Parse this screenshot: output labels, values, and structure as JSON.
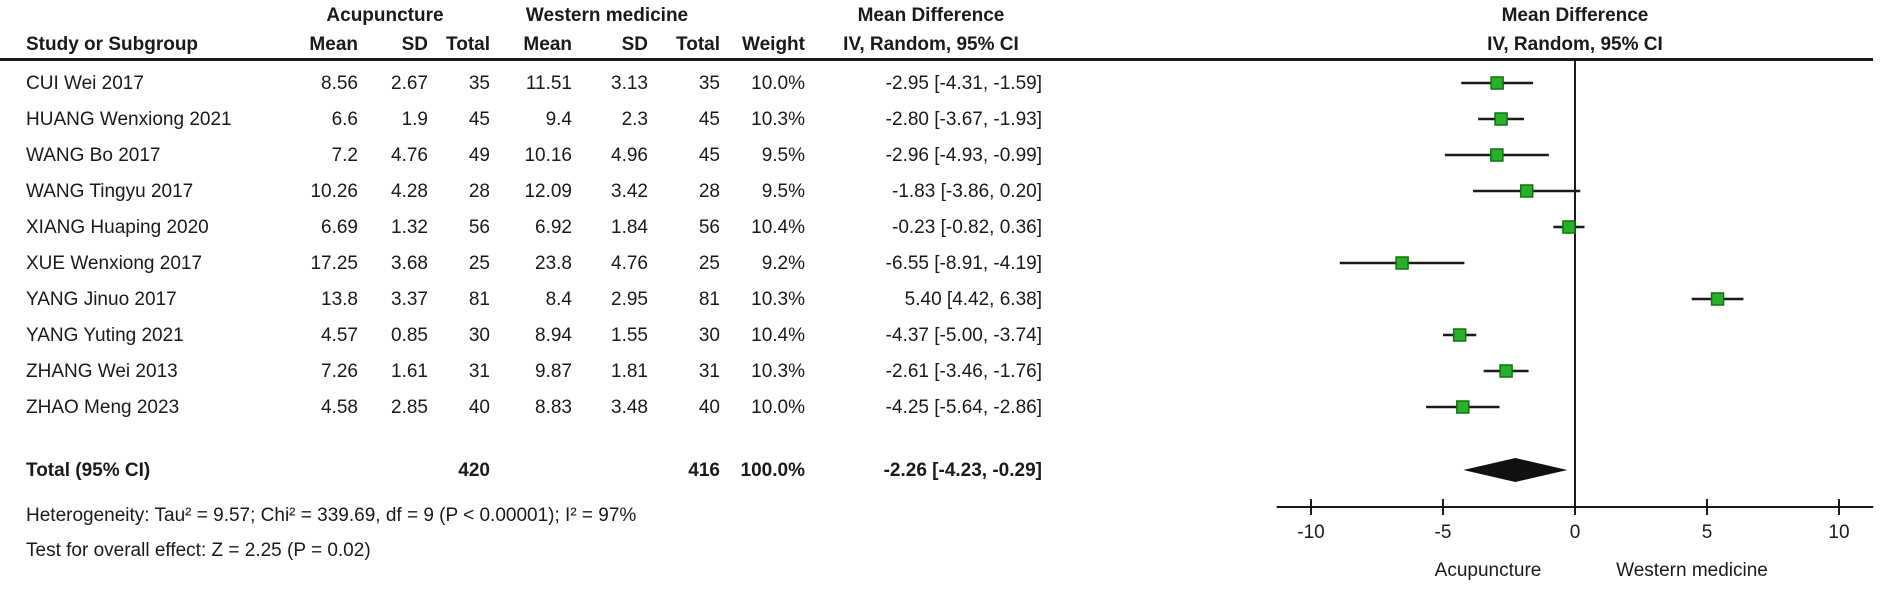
{
  "header": {
    "group1": "Acupuncture",
    "group2": "Western medicine",
    "effect_title": "Mean Difference",
    "effect_subtitle": "IV, Random, 95% CI",
    "plot_title": "Mean Difference",
    "plot_subtitle": "IV, Random, 95% CI",
    "col_study": "Study or Subgroup",
    "col_mean": "Mean",
    "col_sd": "SD",
    "col_total": "Total",
    "col_weight": "Weight"
  },
  "studies": [
    {
      "name": "CUI Wei 2017",
      "mean1": "8.56",
      "sd1": "2.67",
      "n1": "35",
      "mean2": "11.51",
      "sd2": "3.13",
      "n2": "35",
      "weight": "10.0%",
      "ci_text": "-2.95 [-4.31, -1.59]"
    },
    {
      "name": "HUANG Wenxiong 2021",
      "mean1": "6.6",
      "sd1": "1.9",
      "n1": "45",
      "mean2": "9.4",
      "sd2": "2.3",
      "n2": "45",
      "weight": "10.3%",
      "ci_text": "-2.80 [-3.67, -1.93]"
    },
    {
      "name": "WANG Bo 2017",
      "mean1": "7.2",
      "sd1": "4.76",
      "n1": "49",
      "mean2": "10.16",
      "sd2": "4.96",
      "n2": "45",
      "weight": "9.5%",
      "ci_text": "-2.96 [-4.93, -0.99]"
    },
    {
      "name": "WANG Tingyu 2017",
      "mean1": "10.26",
      "sd1": "4.28",
      "n1": "28",
      "mean2": "12.09",
      "sd2": "3.42",
      "n2": "28",
      "weight": "9.5%",
      "ci_text": "-1.83 [-3.86, 0.20]"
    },
    {
      "name": "XIANG Huaping 2020",
      "mean1": "6.69",
      "sd1": "1.32",
      "n1": "56",
      "mean2": "6.92",
      "sd2": "1.84",
      "n2": "56",
      "weight": "10.4%",
      "ci_text": "-0.23 [-0.82, 0.36]"
    },
    {
      "name": "XUE Wenxiong 2017",
      "mean1": "17.25",
      "sd1": "3.68",
      "n1": "25",
      "mean2": "23.8",
      "sd2": "4.76",
      "n2": "25",
      "weight": "9.2%",
      "ci_text": "-6.55 [-8.91, -4.19]"
    },
    {
      "name": "YANG Jinuo 2017",
      "mean1": "13.8",
      "sd1": "3.37",
      "n1": "81",
      "mean2": "8.4",
      "sd2": "2.95",
      "n2": "81",
      "weight": "10.3%",
      "ci_text": "5.40 [4.42, 6.38]"
    },
    {
      "name": "YANG Yuting 2021",
      "mean1": "4.57",
      "sd1": "0.85",
      "n1": "30",
      "mean2": "8.94",
      "sd2": "1.55",
      "n2": "30",
      "weight": "10.4%",
      "ci_text": "-4.37 [-5.00, -3.74]"
    },
    {
      "name": "ZHANG Wei 2013",
      "mean1": "7.26",
      "sd1": "1.61",
      "n1": "31",
      "mean2": "9.87",
      "sd2": "1.81",
      "n2": "31",
      "weight": "10.3%",
      "ci_text": "-2.61 [-3.46, -1.76]"
    },
    {
      "name": "ZHAO Meng 2023",
      "mean1": "4.58",
      "sd1": "2.85",
      "n1": "40",
      "mean2": "8.83",
      "sd2": "3.48",
      "n2": "40",
      "weight": "10.0%",
      "ci_text": "-4.25 [-5.64, -2.86]"
    }
  ],
  "total": {
    "label": "Total (95% CI)",
    "n1": "420",
    "n2": "416",
    "weight": "100.0%",
    "ci_text": "-2.26 [-4.23, -0.29]"
  },
  "footnotes": {
    "heterogeneity": "Heterogeneity: Tau² = 9.57; Chi² = 339.69, df = 9 (P < 0.00001); I² = 97%",
    "overall_effect": "Test for overall effect: Z = 2.25 (P = 0.02)"
  },
  "chart_data": {
    "type": "forest",
    "effect_measure": "Mean Difference",
    "model": "IV, Random, 95% CI",
    "xlim": [
      -11.3,
      11.3
    ],
    "axis_ticks": [
      -10,
      -5,
      0,
      5,
      10
    ],
    "favours_left": "Acupuncture",
    "favours_right": "Western medicine",
    "marker_fill": "#29B129",
    "marker_stroke": "#0E720E",
    "line_color": "#1a1a1a",
    "points": [
      {
        "study": "CUI Wei 2017",
        "est": -2.95,
        "lo": -4.31,
        "hi": -1.59,
        "weight_pct": 10.0
      },
      {
        "study": "HUANG Wenxiong 2021",
        "est": -2.8,
        "lo": -3.67,
        "hi": -1.93,
        "weight_pct": 10.3
      },
      {
        "study": "WANG Bo 2017",
        "est": -2.96,
        "lo": -4.93,
        "hi": -0.99,
        "weight_pct": 9.5
      },
      {
        "study": "WANG Tingyu 2017",
        "est": -1.83,
        "lo": -3.86,
        "hi": 0.2,
        "weight_pct": 9.5
      },
      {
        "study": "XIANG Huaping 2020",
        "est": -0.23,
        "lo": -0.82,
        "hi": 0.36,
        "weight_pct": 10.4
      },
      {
        "study": "XUE Wenxiong 2017",
        "est": -6.55,
        "lo": -8.91,
        "hi": -4.19,
        "weight_pct": 9.2
      },
      {
        "study": "YANG Jinuo 2017",
        "est": 5.4,
        "lo": 4.42,
        "hi": 6.38,
        "weight_pct": 10.3
      },
      {
        "study": "YANG Yuting 2021",
        "est": -4.37,
        "lo": -5.0,
        "hi": -3.74,
        "weight_pct": 10.4
      },
      {
        "study": "ZHANG Wei 2013",
        "est": -2.61,
        "lo": -3.46,
        "hi": -1.76,
        "weight_pct": 10.3
      },
      {
        "study": "ZHAO Meng 2023",
        "est": -4.25,
        "lo": -5.64,
        "hi": -2.86,
        "weight_pct": 10.0
      }
    ],
    "diamond": {
      "est": -2.26,
      "lo": -4.23,
      "hi": -0.29
    }
  }
}
